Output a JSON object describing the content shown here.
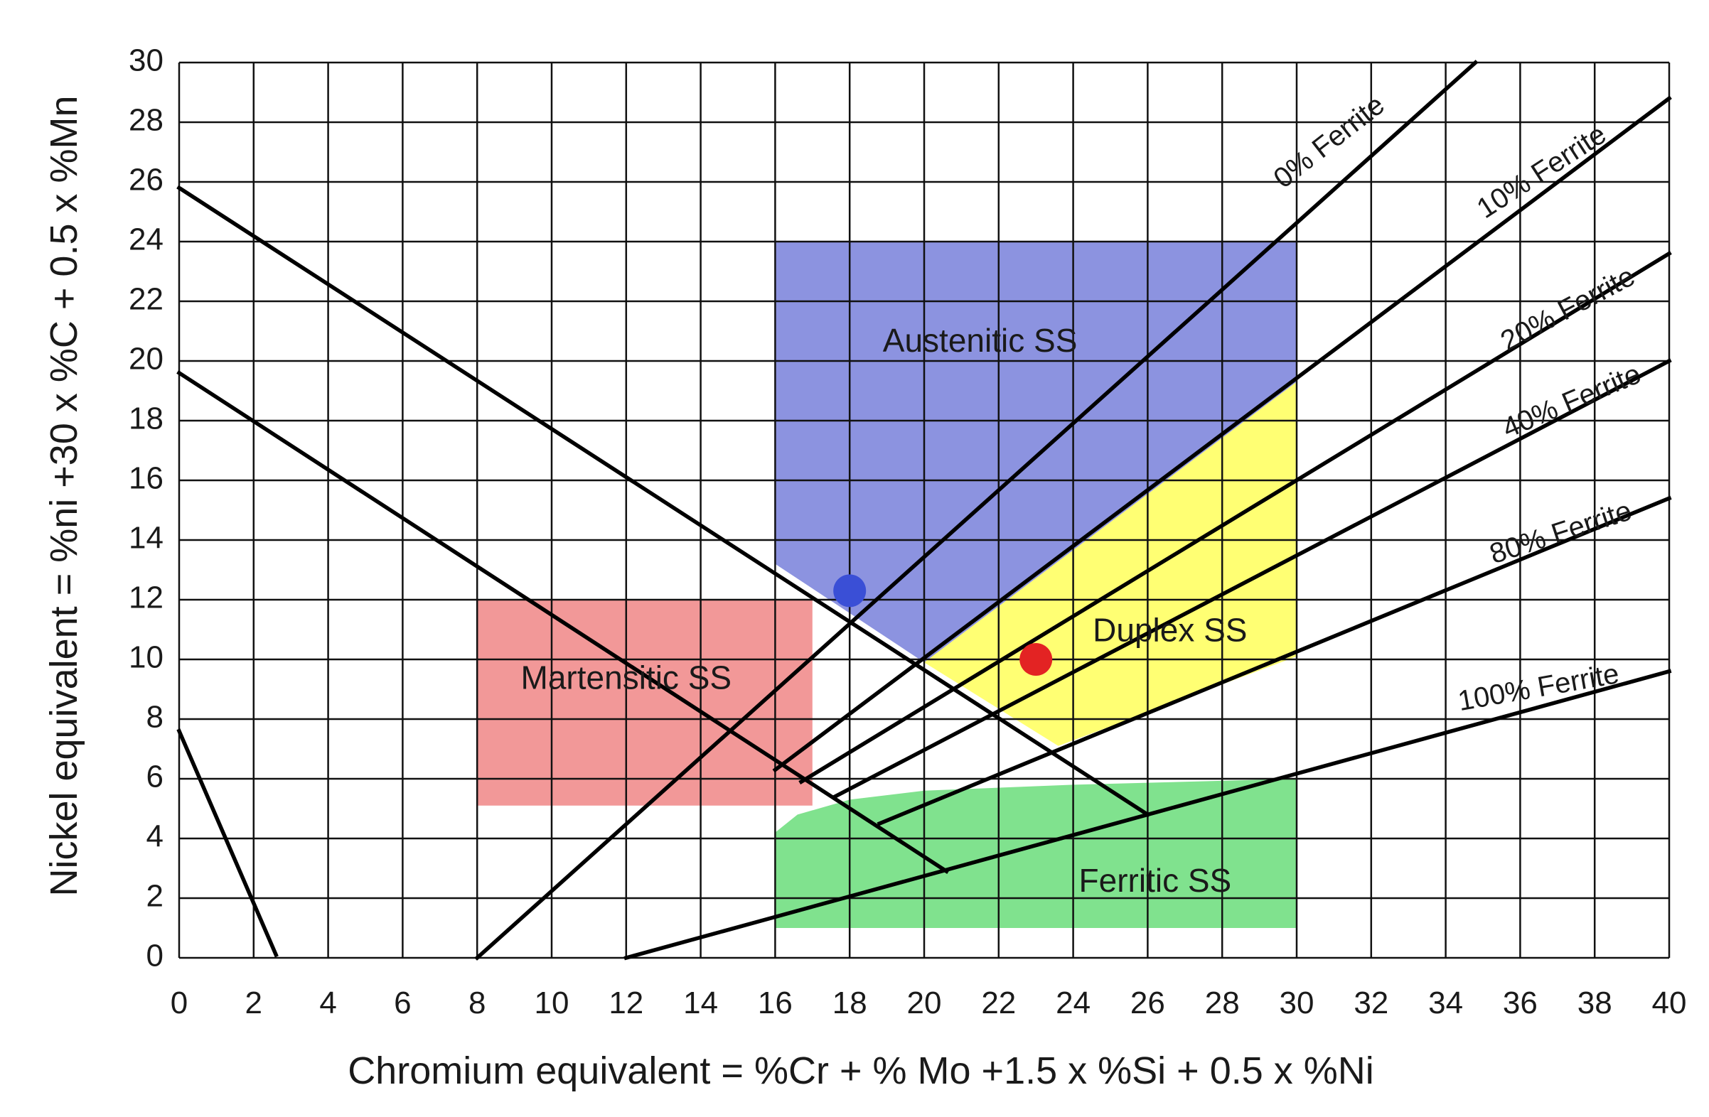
{
  "chart_data": {
    "type": "diagram",
    "xlabel": "Chromium equivalent = %Cr + % Mo +1.5 x %Si + 0.5 x %Ni",
    "ylabel": "Nickel equivalent = %ni +30 x %C + 0.5 x %Mn",
    "xlim": [
      0,
      40
    ],
    "ylim": [
      0,
      30
    ],
    "grid": true,
    "x_ticks": [
      "0",
      "2",
      "4",
      "6",
      "8",
      "10",
      "12",
      "14",
      "16",
      "18",
      "20",
      "22",
      "24",
      "26",
      "28",
      "30",
      "32",
      "34",
      "36",
      "38",
      "40"
    ],
    "y_ticks": [
      "0",
      "2",
      "4",
      "6",
      "8",
      "10",
      "12",
      "14",
      "16",
      "18",
      "20",
      "22",
      "24",
      "26",
      "28",
      "30"
    ],
    "regions": [
      {
        "id": "austenitic",
        "label": "Austenitic SS",
        "color": "#8c93e0",
        "polygon": [
          [
            16,
            24
          ],
          [
            30,
            24
          ],
          [
            30,
            19.3
          ],
          [
            20,
            9.9
          ],
          [
            16,
            13.2
          ]
        ],
        "label_at": [
          21.5,
          20.6
        ]
      },
      {
        "id": "martensitic",
        "label": "Martensitic SS",
        "color": "#f29898",
        "polygon": [
          [
            8,
            12
          ],
          [
            17,
            12
          ],
          [
            17,
            5.1
          ],
          [
            8,
            5.1
          ]
        ],
        "label_at": [
          12,
          9.3
        ]
      },
      {
        "id": "duplex",
        "label": "Duplex SS",
        "color": "#ffff73",
        "polygon": [
          [
            20,
            9.9
          ],
          [
            30,
            19.3
          ],
          [
            30,
            10.1
          ],
          [
            23.6,
            7.1
          ]
        ],
        "label_at": [
          26.6,
          10.9
        ]
      },
      {
        "id": "ferritic",
        "label": "Ferritic SS",
        "color": "#80e28e",
        "polygon": [
          [
            16,
            4.2
          ],
          [
            16.6,
            4.8
          ],
          [
            18,
            5.3
          ],
          [
            20,
            5.6
          ],
          [
            24,
            5.8
          ],
          [
            30,
            6
          ],
          [
            30,
            1
          ],
          [
            16,
            1
          ]
        ],
        "label_at": [
          26.2,
          2.5
        ]
      }
    ],
    "ferrite_lines": [
      {
        "label": "0% Ferrite",
        "from": [
          8,
          0
        ],
        "to": [
          34.8,
          30
        ],
        "label_at": [
          30.9,
          27.3
        ],
        "angle_deg": -38
      },
      {
        "label": "10% Ferrite",
        "from": [
          16,
          6.3
        ],
        "to": [
          40,
          28.8
        ],
        "label_at": [
          36.6,
          26.3
        ],
        "angle_deg": -33
      },
      {
        "label": "20% Ferrite",
        "from": [
          16.7,
          5.9
        ],
        "to": [
          40,
          23.6
        ],
        "label_at": [
          37.3,
          21.7
        ],
        "angle_deg": -28
      },
      {
        "label": "40% Ferrite",
        "from": [
          17.6,
          5.4
        ],
        "to": [
          40,
          20
        ],
        "label_at": [
          37.4,
          18.6
        ],
        "angle_deg": -23
      },
      {
        "label": "80% Ferrite",
        "from": [
          18.8,
          4.5
        ],
        "to": [
          40,
          15.4
        ],
        "label_at": [
          37.1,
          14.2
        ],
        "angle_deg": -18
      },
      {
        "label": "100% Ferrite",
        "from": [
          12,
          0
        ],
        "to": [
          40,
          9.6
        ],
        "label_at": [
          36.5,
          9.0
        ],
        "angle_deg": -10
      }
    ],
    "boundary_lines": [
      {
        "from": [
          0,
          25.8
        ],
        "to": [
          26,
          4.8
        ]
      },
      {
        "from": [
          0,
          19.6
        ],
        "to": [
          20.6,
          2.9
        ]
      },
      {
        "from": [
          0,
          7.6
        ],
        "to": [
          2.6,
          0.1
        ]
      }
    ],
    "points": [
      {
        "x": 18,
        "y": 12.3,
        "color": "#3a4fd6"
      },
      {
        "x": 23,
        "y": 10,
        "color": "#e32323"
      }
    ]
  }
}
